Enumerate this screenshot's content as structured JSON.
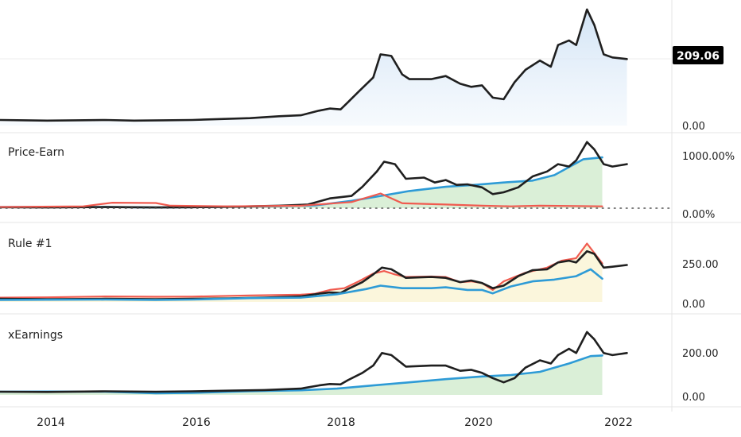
{
  "colors": {
    "price": "#1f1f1f",
    "fair": "#2e9bd6",
    "high": "#f05a4f",
    "area_blue": "#d6e6f6",
    "area_green": "#d4ecd0",
    "grid": "#e4e4e4",
    "badge_bg": "#000000",
    "badge_text": "#ffffff"
  },
  "last_price_badge": "209.06",
  "x_axis": {
    "ticks": [
      {
        "label": "2014",
        "x": 2014.0
      },
      {
        "label": "2016",
        "x": 2016.0
      },
      {
        "label": "2018",
        "x": 2018.0
      },
      {
        "label": "2020",
        "x": 2020.0
      },
      {
        "label": "2022",
        "x": 2022.0
      }
    ],
    "domain": [
      2013.35,
      2022.62
    ]
  },
  "panes": [
    {
      "title": "",
      "y_ticks": [
        "0.00"
      ]
    },
    {
      "title": "Price-Earn",
      "y_ticks": [
        "1000.00%",
        "0.00%"
      ]
    },
    {
      "title": "Rule #1",
      "y_ticks": [
        "250.00",
        "0.00"
      ]
    },
    {
      "title": "xEarnings",
      "y_ticks": [
        "200.00",
        "0.00"
      ]
    }
  ],
  "chart_data": [
    {
      "type": "area",
      "series": [
        {
          "name": "",
          "kind": "price",
          "ylim": [
            0,
            380
          ],
          "points": [
            [
              2013.35,
              18
            ],
            [
              2013.7,
              17
            ],
            [
              2014.0,
              16
            ],
            [
              2014.4,
              17
            ],
            [
              2014.8,
              18
            ],
            [
              2015.2,
              16
            ],
            [
              2015.6,
              17
            ],
            [
              2016.0,
              18
            ],
            [
              2016.4,
              21
            ],
            [
              2016.8,
              24
            ],
            [
              2017.2,
              30
            ],
            [
              2017.5,
              33
            ],
            [
              2017.75,
              48
            ],
            [
              2017.9,
              55
            ],
            [
              2018.05,
              52
            ],
            [
              2018.15,
              75
            ],
            [
              2018.3,
              110
            ],
            [
              2018.5,
              155
            ],
            [
              2018.6,
              230
            ],
            [
              2018.75,
              225
            ],
            [
              2018.9,
              165
            ],
            [
              2019.0,
              150
            ],
            [
              2019.3,
              150
            ],
            [
              2019.5,
              160
            ],
            [
              2019.7,
              135
            ],
            [
              2019.85,
              125
            ],
            [
              2020.0,
              130
            ],
            [
              2020.15,
              90
            ],
            [
              2020.3,
              85
            ],
            [
              2020.45,
              140
            ],
            [
              2020.6,
              180
            ],
            [
              2020.8,
              210
            ],
            [
              2020.95,
              190
            ],
            [
              2021.05,
              260
            ],
            [
              2021.2,
              275
            ],
            [
              2021.3,
              260
            ],
            [
              2021.45,
              375
            ],
            [
              2021.55,
              325
            ],
            [
              2021.68,
              230
            ],
            [
              2021.8,
              220
            ],
            [
              2022.0,
              215
            ]
          ]
        }
      ]
    },
    {
      "type": "area",
      "series": [
        {
          "name": "",
          "kind": "fair",
          "ylim": [
            0,
            1000
          ],
          "points": [
            [
              2013.35,
              20
            ],
            [
              2014.0,
              22
            ],
            [
              2014.8,
              20
            ],
            [
              2015.5,
              10
            ],
            [
              2016.0,
              15
            ],
            [
              2016.6,
              25
            ],
            [
              2017.2,
              35
            ],
            [
              2017.7,
              45
            ],
            [
              2018.2,
              120
            ],
            [
              2018.6,
              200
            ],
            [
              2019.0,
              280
            ],
            [
              2019.5,
              350
            ],
            [
              2019.9,
              380
            ],
            [
              2020.3,
              420
            ],
            [
              2020.7,
              450
            ],
            [
              2021.0,
              540
            ],
            [
              2021.4,
              800
            ],
            [
              2021.66,
              830
            ]
          ]
        },
        {
          "name": "",
          "kind": "price",
          "ylim": [
            0,
            1000
          ],
          "points": [
            [
              2013.35,
              15
            ],
            [
              2014.0,
              12
            ],
            [
              2014.8,
              18
            ],
            [
              2015.5,
              12
            ],
            [
              2016.0,
              15
            ],
            [
              2016.6,
              25
            ],
            [
              2017.2,
              40
            ],
            [
              2017.6,
              60
            ],
            [
              2017.9,
              160
            ],
            [
              2018.2,
              200
            ],
            [
              2018.35,
              350
            ],
            [
              2018.55,
              600
            ],
            [
              2018.65,
              760
            ],
            [
              2018.8,
              720
            ],
            [
              2018.95,
              480
            ],
            [
              2019.2,
              500
            ],
            [
              2019.35,
              420
            ],
            [
              2019.5,
              460
            ],
            [
              2019.65,
              380
            ],
            [
              2019.8,
              390
            ],
            [
              2020.0,
              340
            ],
            [
              2020.15,
              230
            ],
            [
              2020.3,
              260
            ],
            [
              2020.5,
              340
            ],
            [
              2020.7,
              520
            ],
            [
              2020.9,
              600
            ],
            [
              2021.05,
              720
            ],
            [
              2021.2,
              680
            ],
            [
              2021.3,
              780
            ],
            [
              2021.45,
              1080
            ],
            [
              2021.55,
              960
            ],
            [
              2021.68,
              720
            ],
            [
              2021.8,
              680
            ],
            [
              2022.0,
              720
            ]
          ]
        },
        {
          "name": "",
          "kind": "high",
          "ylim": [
            0,
            1000
          ],
          "points": [
            [
              2013.35,
              20
            ],
            [
              2014.5,
              30
            ],
            [
              2014.9,
              90
            ],
            [
              2015.5,
              85
            ],
            [
              2015.7,
              40
            ],
            [
              2016.5,
              30
            ],
            [
              2017.5,
              40
            ],
            [
              2018.2,
              100
            ],
            [
              2018.6,
              240
            ],
            [
              2018.9,
              80
            ],
            [
              2019.5,
              60
            ],
            [
              2020.0,
              40
            ],
            [
              2020.4,
              30
            ],
            [
              2020.8,
              40
            ],
            [
              2021.3,
              35
            ],
            [
              2021.66,
              30
            ]
          ]
        }
      ]
    },
    {
      "type": "area",
      "series": [
        {
          "name": "",
          "kind": "high",
          "ylim": [
            0,
            370
          ],
          "points": [
            [
              2013.35,
              25
            ],
            [
              2014.0,
              27
            ],
            [
              2014.8,
              32
            ],
            [
              2015.5,
              30
            ],
            [
              2016.0,
              31
            ],
            [
              2016.8,
              38
            ],
            [
              2017.5,
              42
            ],
            [
              2017.7,
              48
            ],
            [
              2017.9,
              70
            ],
            [
              2018.1,
              80
            ],
            [
              2018.3,
              120
            ],
            [
              2018.5,
              165
            ],
            [
              2018.65,
              180
            ],
            [
              2018.8,
              160
            ],
            [
              2018.95,
              145
            ],
            [
              2019.3,
              148
            ],
            [
              2019.5,
              145
            ],
            [
              2019.7,
              115
            ],
            [
              2019.85,
              120
            ],
            [
              2020.0,
              110
            ],
            [
              2020.15,
              70
            ],
            [
              2020.3,
              120
            ],
            [
              2020.6,
              170
            ],
            [
              2020.9,
              200
            ],
            [
              2021.1,
              240
            ],
            [
              2021.3,
              255
            ],
            [
              2021.45,
              340
            ],
            [
              2021.66,
              225
            ]
          ]
        },
        {
          "name": "",
          "kind": "price",
          "ylim": [
            0,
            370
          ],
          "points": [
            [
              2013.35,
              18
            ],
            [
              2014.0,
              16
            ],
            [
              2014.8,
              18
            ],
            [
              2015.5,
              16
            ],
            [
              2016.0,
              18
            ],
            [
              2016.5,
              21
            ],
            [
              2017.0,
              25
            ],
            [
              2017.5,
              32
            ],
            [
              2017.75,
              48
            ],
            [
              2017.9,
              55
            ],
            [
              2018.05,
              52
            ],
            [
              2018.15,
              75
            ],
            [
              2018.35,
              115
            ],
            [
              2018.5,
              160
            ],
            [
              2018.62,
              200
            ],
            [
              2018.75,
              190
            ],
            [
              2018.95,
              140
            ],
            [
              2019.3,
              145
            ],
            [
              2019.5,
              140
            ],
            [
              2019.7,
              115
            ],
            [
              2019.85,
              125
            ],
            [
              2020.0,
              110
            ],
            [
              2020.15,
              80
            ],
            [
              2020.3,
              95
            ],
            [
              2020.5,
              150
            ],
            [
              2020.7,
              185
            ],
            [
              2020.9,
              190
            ],
            [
              2021.05,
              230
            ],
            [
              2021.2,
              240
            ],
            [
              2021.3,
              230
            ],
            [
              2021.45,
              295
            ],
            [
              2021.55,
              280
            ],
            [
              2021.68,
              200
            ],
            [
              2021.8,
              205
            ],
            [
              2022.0,
              215
            ]
          ]
        },
        {
          "name": "",
          "kind": "fair",
          "ylim": [
            0,
            370
          ],
          "points": [
            [
              2013.35,
              12
            ],
            [
              2014.0,
              13
            ],
            [
              2014.8,
              14
            ],
            [
              2015.5,
              12
            ],
            [
              2016.0,
              14
            ],
            [
              2016.8,
              22
            ],
            [
              2017.5,
              25
            ],
            [
              2018.0,
              45
            ],
            [
              2018.4,
              75
            ],
            [
              2018.6,
              95
            ],
            [
              2018.9,
              80
            ],
            [
              2019.3,
              80
            ],
            [
              2019.5,
              85
            ],
            [
              2019.8,
              70
            ],
            [
              2020.0,
              70
            ],
            [
              2020.15,
              50
            ],
            [
              2020.4,
              90
            ],
            [
              2020.7,
              120
            ],
            [
              2021.0,
              130
            ],
            [
              2021.3,
              150
            ],
            [
              2021.5,
              190
            ],
            [
              2021.66,
              135
            ]
          ]
        }
      ]
    },
    {
      "type": "area",
      "series": [
        {
          "name": "",
          "kind": "fair",
          "ylim": [
            0,
            330
          ],
          "points": [
            [
              2013.35,
              15
            ],
            [
              2014.0,
              16
            ],
            [
              2014.8,
              15
            ],
            [
              2015.5,
              8
            ],
            [
              2016.0,
              10
            ],
            [
              2016.8,
              18
            ],
            [
              2017.5,
              22
            ],
            [
              2018.0,
              30
            ],
            [
              2018.5,
              45
            ],
            [
              2019.0,
              60
            ],
            [
              2019.5,
              75
            ],
            [
              2020.0,
              88
            ],
            [
              2020.4,
              95
            ],
            [
              2020.8,
              110
            ],
            [
              2021.2,
              150
            ],
            [
              2021.5,
              185
            ],
            [
              2021.66,
              188
            ]
          ]
        },
        {
          "name": "",
          "kind": "price",
          "ylim": [
            0,
            330
          ],
          "points": [
            [
              2013.35,
              15
            ],
            [
              2014.0,
              14
            ],
            [
              2014.8,
              17
            ],
            [
              2015.5,
              15
            ],
            [
              2016.0,
              17
            ],
            [
              2016.5,
              20
            ],
            [
              2017.0,
              23
            ],
            [
              2017.5,
              30
            ],
            [
              2017.75,
              45
            ],
            [
              2017.9,
              52
            ],
            [
              2018.05,
              50
            ],
            [
              2018.15,
              70
            ],
            [
              2018.35,
              105
            ],
            [
              2018.5,
              140
            ],
            [
              2018.62,
              200
            ],
            [
              2018.75,
              190
            ],
            [
              2018.95,
              135
            ],
            [
              2019.3,
              140
            ],
            [
              2019.5,
              140
            ],
            [
              2019.7,
              115
            ],
            [
              2019.85,
              120
            ],
            [
              2020.0,
              105
            ],
            [
              2020.15,
              80
            ],
            [
              2020.3,
              60
            ],
            [
              2020.45,
              80
            ],
            [
              2020.6,
              130
            ],
            [
              2020.8,
              165
            ],
            [
              2020.95,
              150
            ],
            [
              2021.05,
              190
            ],
            [
              2021.2,
              220
            ],
            [
              2021.3,
              200
            ],
            [
              2021.45,
              300
            ],
            [
              2021.55,
              265
            ],
            [
              2021.68,
              200
            ],
            [
              2021.8,
              190
            ],
            [
              2022.0,
              200
            ]
          ]
        }
      ]
    }
  ]
}
